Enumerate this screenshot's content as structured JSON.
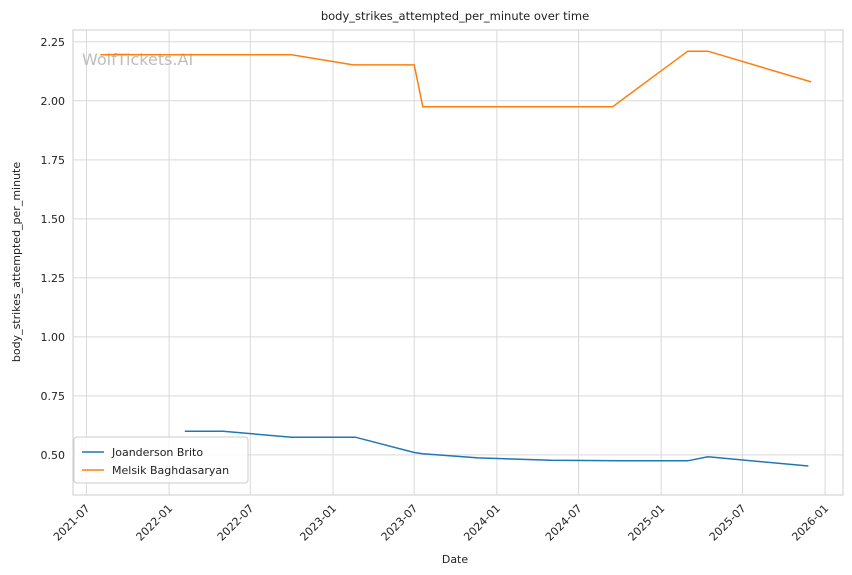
{
  "chart_data": {
    "type": "line",
    "title": "body_strikes_attempted_per_minute over time",
    "xlabel": "Date",
    "ylabel": "body_strikes_attempted_per_minute",
    "watermark": "WolfTickets.AI",
    "xlim": [
      "2021-06-01",
      "2026-02-10"
    ],
    "ylim": [
      0.33,
      2.3
    ],
    "x_ticks": [
      "2021-07-01",
      "2022-01-01",
      "2022-07-01",
      "2023-01-01",
      "2023-07-01",
      "2024-01-01",
      "2024-07-01",
      "2025-01-01",
      "2025-07-01",
      "2026-01-01"
    ],
    "y_ticks": [
      0.5,
      0.75,
      1.0,
      1.25,
      1.5,
      1.75,
      2.0,
      2.25
    ],
    "grid": true,
    "legend_position": "lower-left",
    "series": [
      {
        "name": "Joanderson Brito",
        "color": "#1f77b4",
        "points": [
          {
            "x": "2022-02-05",
            "y": 0.6
          },
          {
            "x": "2022-05-01",
            "y": 0.6
          },
          {
            "x": "2022-10-01",
            "y": 0.575
          },
          {
            "x": "2023-02-20",
            "y": 0.575
          },
          {
            "x": "2023-07-01",
            "y": 0.51
          },
          {
            "x": "2023-07-20",
            "y": 0.505
          },
          {
            "x": "2023-11-20",
            "y": 0.487
          },
          {
            "x": "2024-05-01",
            "y": 0.477
          },
          {
            "x": "2024-10-01",
            "y": 0.475
          },
          {
            "x": "2025-03-01",
            "y": 0.475
          },
          {
            "x": "2025-04-15",
            "y": 0.492
          },
          {
            "x": "2025-11-25",
            "y": 0.453
          }
        ]
      },
      {
        "name": "Melsik Baghdasaryan",
        "color": "#ff7f0e",
        "points": [
          {
            "x": "2021-08-01",
            "y": 2.195
          },
          {
            "x": "2022-10-01",
            "y": 2.195
          },
          {
            "x": "2023-02-15",
            "y": 2.152
          },
          {
            "x": "2023-07-01",
            "y": 2.152
          },
          {
            "x": "2023-07-20",
            "y": 1.975
          },
          {
            "x": "2024-09-15",
            "y": 1.975
          },
          {
            "x": "2025-03-01",
            "y": 2.21
          },
          {
            "x": "2025-04-15",
            "y": 2.21
          },
          {
            "x": "2025-12-01",
            "y": 2.08
          }
        ]
      }
    ]
  }
}
